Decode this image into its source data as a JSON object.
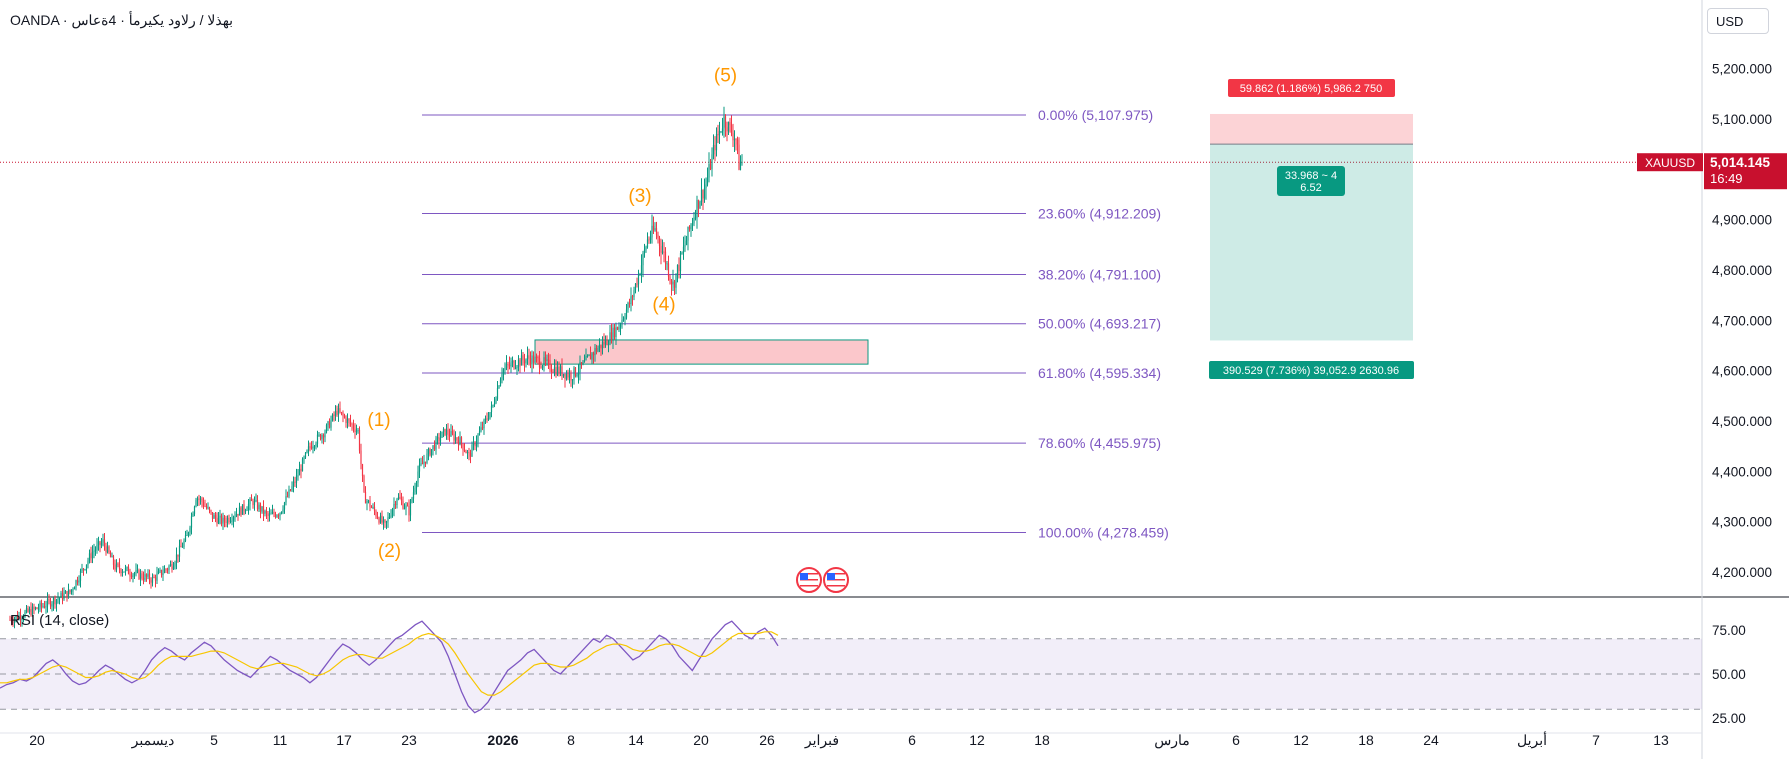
{
  "header": {
    "title": "OANDA · بهذلا / رلاود يكيرمأ · 4ةعاس",
    "currency": "USD",
    "rsi_label": "RSI (14, close)"
  },
  "colors": {
    "up": "#089981",
    "down": "#f23645",
    "fib": "#7e57c2",
    "wave": "#ff9800",
    "rsi": "#7e57c2",
    "rsi_ma": "#f7c600",
    "price_tag": "#c8102e"
  },
  "price_tag": {
    "symbol": "XAUUSD",
    "price": "5,014.145",
    "countdown": "16:49"
  },
  "position": {
    "stop_label": "59.862 (1.186%) 5,986.2 750",
    "target_label": "390.529 (7.736%) 39,052.9 2630.96",
    "center_label_1": "33.968 ~ 4",
    "center_label_2": "6.52"
  },
  "chart_data": [
    {
      "type": "candlestick",
      "title": "",
      "y_axis_ticks": [
        "5,200.000",
        "5,100.000",
        "4,900.000",
        "4,800.000",
        "4,700.000",
        "4,600.000",
        "4,500.000",
        "4,400.000",
        "4,300.000",
        "4,200.000"
      ],
      "x_axis_ticks": [
        "20",
        "ديسمبر",
        "5",
        "11",
        "17",
        "23",
        "2026",
        "8",
        "14",
        "20",
        "26",
        "فبراير",
        "6",
        "12",
        "18",
        "مارس",
        "6",
        "12",
        "18",
        "24",
        "أبريل",
        "7",
        "13"
      ],
      "price_path": [
        [
          0,
          4105
        ],
        [
          20,
          4130
        ],
        [
          40,
          4160
        ],
        [
          55,
          4240
        ],
        [
          62,
          4260
        ],
        [
          70,
          4210
        ],
        [
          80,
          4200
        ],
        [
          95,
          4185
        ],
        [
          108,
          4215
        ],
        [
          118,
          4270
        ],
        [
          124,
          4350
        ],
        [
          128,
          4340
        ],
        [
          135,
          4310
        ],
        [
          142,
          4300
        ],
        [
          155,
          4325
        ],
        [
          162,
          4340
        ],
        [
          172,
          4310
        ],
        [
          180,
          4320
        ],
        [
          190,
          4380
        ],
        [
          200,
          4450
        ],
        [
          210,
          4480
        ],
        [
          218,
          4520
        ],
        [
          225,
          4500
        ],
        [
          232,
          4480
        ],
        [
          236,
          4350
        ],
        [
          243,
          4320
        ],
        [
          250,
          4290
        ],
        [
          258,
          4350
        ],
        [
          266,
          4320
        ],
        [
          272,
          4400
        ],
        [
          280,
          4440
        ],
        [
          290,
          4480
        ],
        [
          300,
          4460
        ],
        [
          306,
          4430
        ],
        [
          312,
          4470
        ],
        [
          322,
          4530
        ],
        [
          328,
          4600
        ],
        [
          336,
          4615
        ],
        [
          346,
          4625
        ],
        [
          356,
          4615
        ],
        [
          366,
          4600
        ],
        [
          374,
          4590
        ],
        [
          382,
          4610
        ],
        [
          390,
          4640
        ],
        [
          398,
          4660
        ],
        [
          406,
          4690
        ],
        [
          414,
          4740
        ],
        [
          420,
          4800
        ],
        [
          425,
          4860
        ],
        [
          430,
          4880
        ],
        [
          436,
          4830
        ],
        [
          442,
          4770
        ],
        [
          450,
          4850
        ],
        [
          458,
          4930
        ],
        [
          464,
          4970
        ],
        [
          470,
          5050
        ],
        [
          476,
          5100
        ],
        [
          480,
          5080
        ],
        [
          484,
          5060
        ],
        [
          486,
          5010
        ],
        [
          488,
          5014
        ]
      ],
      "fibonacci": [
        {
          "label": "0.00% (5,107.975)",
          "price": 5107.975
        },
        {
          "label": "23.60% (4,912.209)",
          "price": 4912.209
        },
        {
          "label": "38.20% (4,791.100)",
          "price": 4791.1
        },
        {
          "label": "50.00% (4,693.217)",
          "price": 4693.217
        },
        {
          "label": "61.80% (4,595.334)",
          "price": 4595.334
        },
        {
          "label": "78.60% (4,455.975)",
          "price": 4455.975
        },
        {
          "label": "100.00% (4,278.459)",
          "price": 4278.459
        }
      ],
      "elliott_waves": [
        {
          "label": "(1)",
          "bar": 246,
          "price": 4490
        },
        {
          "label": "(2)",
          "bar": 253,
          "price": 4230
        },
        {
          "label": "(3)",
          "bar": 420,
          "price": 4935
        },
        {
          "label": "(4)",
          "bar": 436,
          "price": 4720
        },
        {
          "label": "(5)",
          "bar": 477,
          "price": 5175
        }
      ],
      "demand_zone": {
        "price_top": 4661,
        "price_bottom": 4613,
        "bar_start": 350,
        "bar_end": 572
      },
      "long_position": {
        "entry": 5050,
        "stop": 5110,
        "target": 4660,
        "bar_start": 686,
        "bar_end": 810
      }
    },
    {
      "type": "line",
      "title": "RSI (14, close)",
      "y_axis_ticks": [
        "75.00",
        "50.00",
        "25.00"
      ],
      "ylim": [
        25,
        90
      ],
      "levels": [
        70,
        50,
        30
      ],
      "series": [
        {
          "values": [
            42,
            44,
            45,
            47,
            46,
            48,
            52,
            56,
            58,
            55,
            50,
            46,
            44,
            45,
            48,
            52,
            55,
            53,
            50,
            47,
            45,
            47,
            52,
            58,
            62,
            65,
            63,
            60,
            58,
            62,
            65,
            68,
            66,
            62,
            58,
            55,
            52,
            50,
            48,
            52,
            56,
            60,
            58,
            55,
            52,
            50,
            48,
            45,
            48,
            53,
            58,
            63,
            67,
            65,
            62,
            58,
            55,
            58,
            62,
            66,
            70,
            72,
            75,
            78,
            80,
            76,
            72,
            68,
            60,
            50,
            40,
            32,
            28,
            30,
            34,
            40,
            46,
            52,
            55,
            58,
            62,
            64,
            60,
            56,
            52,
            50,
            54,
            58,
            62,
            66,
            70,
            68,
            72,
            70,
            66,
            62,
            58,
            60,
            64,
            68,
            72,
            70,
            66,
            60,
            56,
            52,
            58,
            64,
            70,
            74,
            78,
            80,
            76,
            72,
            70,
            74,
            76,
            72,
            66
          ]
        },
        {
          "values": [
            45,
            45,
            46,
            47,
            47,
            48,
            50,
            52,
            54,
            55,
            54,
            52,
            50,
            48,
            48,
            49,
            51,
            52,
            51,
            50,
            48,
            47,
            48,
            51,
            55,
            58,
            60,
            60,
            60,
            60,
            61,
            62,
            63,
            63,
            62,
            60,
            58,
            56,
            54,
            53,
            54,
            55,
            56,
            56,
            55,
            54,
            52,
            50,
            49,
            50,
            52,
            55,
            58,
            60,
            61,
            61,
            60,
            59,
            59,
            61,
            63,
            65,
            67,
            70,
            72,
            73,
            72,
            70,
            67,
            62,
            56,
            50,
            45,
            40,
            38,
            38,
            40,
            43,
            46,
            49,
            52,
            55,
            56,
            56,
            55,
            54,
            54,
            55,
            57,
            59,
            62,
            64,
            66,
            67,
            67,
            66,
            64,
            63,
            63,
            64,
            66,
            67,
            67,
            66,
            64,
            62,
            60,
            60,
            62,
            65,
            68,
            71,
            73,
            73,
            73,
            73,
            74,
            74,
            72
          ]
        }
      ]
    }
  ]
}
